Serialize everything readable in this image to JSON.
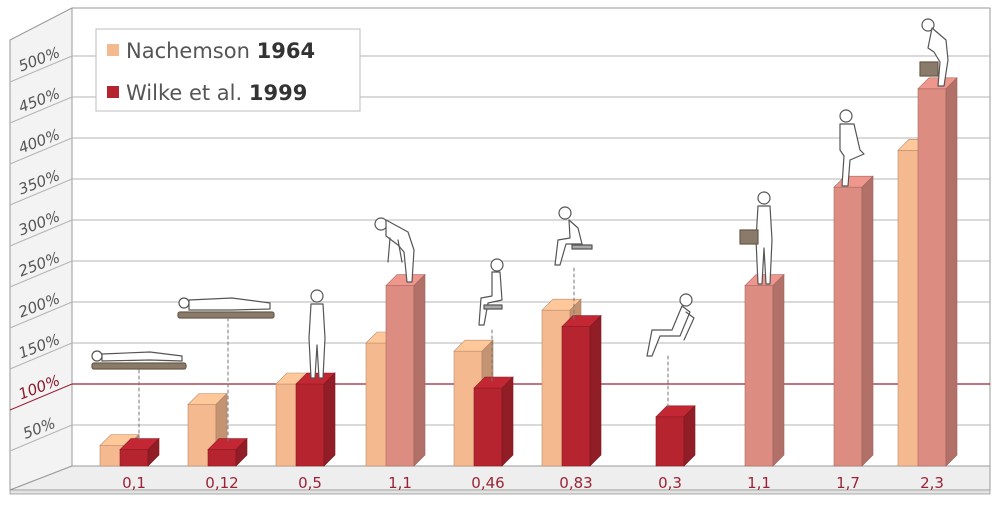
{
  "chart_data": {
    "type": "bar",
    "categories": [
      "0,1",
      "0,12",
      "0,5",
      "1,1",
      "0,46",
      "0,83",
      "0,3",
      "1,1",
      "1,7",
      "2,3"
    ],
    "yticks": [
      "50%",
      "100%",
      "150%",
      "200%",
      "250%",
      "300%",
      "350%",
      "400%",
      "450%",
      "500%"
    ],
    "ytick_values": [
      50,
      100,
      150,
      200,
      250,
      300,
      350,
      400,
      450,
      500
    ],
    "reference_line": 100,
    "ylim": [
      0,
      500
    ],
    "grid": true,
    "legend_position": "top-left",
    "series": [
      {
        "name": "Nachemson",
        "year": "1964",
        "color": "#f5b98f",
        "values": [
          25,
          75,
          100,
          150,
          140,
          190,
          null,
          null,
          null,
          385
        ]
      },
      {
        "name": "Wilke et al.",
        "year": "1999",
        "color": "#b5242f",
        "values": [
          20,
          20,
          100,
          220,
          95,
          170,
          60,
          220,
          340,
          460
        ]
      }
    ],
    "pictograms": [
      "person-lying-supine-icon",
      "person-lying-side-icon",
      "person-standing-icon",
      "person-bending-forward-icon",
      "person-sitting-upright-icon",
      "person-sitting-bent-forward-icon",
      "person-sitting-reclined-icon",
      "person-holding-box-icon",
      "person-stepping-icon",
      "person-lifting-box-icon"
    ]
  }
}
